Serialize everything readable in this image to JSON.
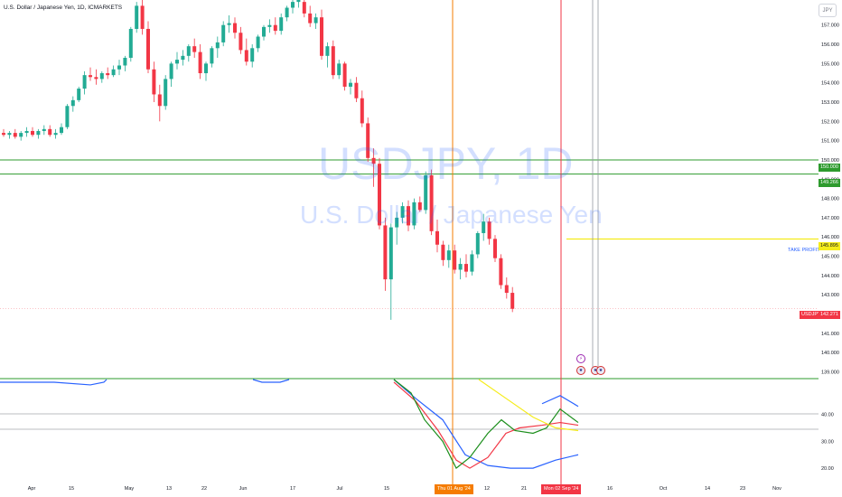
{
  "header": {
    "title": "U.S. Dollar / Japanese Yen, 1D, ICMARKETS",
    "currency": "JPY"
  },
  "watermark": {
    "symbol": "USDJPY, 1D",
    "description": "U.S. Dollar / Japanese Yen"
  },
  "annotations": {
    "take_profit": "TAKE PROFIT",
    "date_1": "Thu 01 Aug '24",
    "date_2": "Mon 02 Sep '24"
  },
  "price_tags": {
    "level_1": "150.000",
    "level_2": "149.266",
    "take_profit": "145.895",
    "symbol": "USDJPY",
    "last": "142.271"
  },
  "events": [
    "earnings-bolt-icon",
    "us-flag-icon",
    "us-flag-icon",
    "us-flag-icon"
  ],
  "colors": {
    "up": "#22ab94",
    "down": "#f23645",
    "level": "#2e9b2e",
    "take_profit": "#f5ec1a",
    "vline_1": "#f57c00",
    "vline_2": "#f23645",
    "osc_blue": "#2962ff",
    "osc_green": "#1b8e1b",
    "osc_red": "#f23645",
    "osc_yellow": "#f5ec1a"
  },
  "chart_data": [
    {
      "type": "candlestick",
      "symbol": "USDJPY",
      "timeframe": "1D",
      "y_axis_ticks": [
        "157.000",
        "156.000",
        "155.000",
        "154.000",
        "153.000",
        "152.000",
        "151.000",
        "150.000",
        "149.000",
        "148.000",
        "147.000",
        "146.000",
        "145.000",
        "144.000",
        "143.000",
        "142.000",
        "141.000",
        "140.000",
        "139.000"
      ],
      "x_axis_ticks": [
        "Apr",
        "15",
        "May",
        "13",
        "22",
        "Jun",
        "17",
        "Jul",
        "15",
        "Aug",
        "12",
        "21",
        "Sep",
        "16",
        "Oct",
        "14",
        "23",
        "Nov"
      ],
      "ylim": [
        138.6,
        158.3
      ],
      "horizontal_levels": [
        150.0,
        149.266
      ],
      "take_profit": 145.895,
      "last_price": 142.271,
      "markers": [
        "Thu 01 Aug '24",
        "Mon 02 Sep '24"
      ],
      "candles": [
        [
          151.4,
          151.6,
          151.2,
          151.3
        ],
        [
          151.3,
          151.5,
          151.1,
          151.4
        ],
        [
          151.4,
          151.6,
          151.1,
          151.2
        ],
        [
          151.2,
          151.5,
          151.0,
          151.4
        ],
        [
          151.4,
          151.7,
          151.2,
          151.5
        ],
        [
          151.5,
          151.7,
          151.2,
          151.3
        ],
        [
          151.3,
          151.6,
          151.1,
          151.5
        ],
        [
          151.5,
          151.8,
          151.3,
          151.6
        ],
        [
          151.6,
          151.8,
          151.2,
          151.3
        ],
        [
          151.3,
          151.6,
          151.1,
          151.4
        ],
        [
          151.4,
          151.9,
          151.3,
          151.7
        ],
        [
          151.7,
          152.9,
          151.6,
          152.8
        ],
        [
          152.8,
          153.3,
          152.5,
          153.1
        ],
        [
          153.1,
          153.8,
          153.0,
          153.7
        ],
        [
          153.7,
          154.6,
          153.4,
          154.4
        ],
        [
          154.4,
          154.8,
          154.1,
          154.3
        ],
        [
          154.3,
          154.7,
          153.9,
          154.2
        ],
        [
          154.2,
          154.6,
          154.0,
          154.5
        ],
        [
          154.5,
          154.8,
          154.2,
          154.4
        ],
        [
          154.4,
          154.9,
          154.3,
          154.7
        ],
        [
          154.7,
          155.2,
          154.4,
          154.9
        ],
        [
          154.9,
          155.4,
          154.6,
          155.3
        ],
        [
          155.3,
          156.9,
          155.1,
          156.8
        ],
        [
          156.8,
          158.2,
          156.6,
          158.0
        ],
        [
          158.0,
          158.4,
          156.5,
          156.8
        ],
        [
          156.8,
          157.2,
          154.5,
          154.7
        ],
        [
          154.7,
          155.1,
          153.0,
          153.4
        ],
        [
          153.4,
          153.9,
          152.0,
          152.8
        ],
        [
          152.8,
          154.4,
          152.6,
          154.2
        ],
        [
          154.2,
          155.1,
          153.8,
          155.0
        ],
        [
          155.0,
          155.6,
          154.7,
          155.2
        ],
        [
          155.2,
          155.7,
          154.9,
          155.4
        ],
        [
          155.4,
          156.0,
          155.1,
          155.9
        ],
        [
          155.9,
          156.3,
          155.3,
          155.6
        ],
        [
          155.6,
          156.0,
          154.2,
          154.5
        ],
        [
          154.5,
          155.1,
          154.1,
          155.0
        ],
        [
          155.0,
          155.9,
          154.8,
          155.8
        ],
        [
          155.8,
          156.4,
          155.3,
          156.1
        ],
        [
          156.1,
          157.2,
          155.9,
          157.0
        ],
        [
          157.0,
          157.5,
          156.6,
          157.1
        ],
        [
          157.1,
          157.4,
          156.3,
          156.6
        ],
        [
          156.6,
          156.9,
          155.5,
          155.7
        ],
        [
          155.7,
          156.3,
          154.9,
          155.1
        ],
        [
          155.1,
          156.0,
          154.8,
          155.8
        ],
        [
          155.8,
          156.5,
          155.6,
          156.4
        ],
        [
          156.4,
          157.0,
          156.2,
          156.9
        ],
        [
          156.9,
          157.3,
          156.6,
          157.0
        ],
        [
          157.0,
          157.4,
          156.5,
          156.7
        ],
        [
          156.7,
          157.6,
          156.5,
          157.4
        ],
        [
          157.4,
          158.0,
          157.2,
          157.9
        ],
        [
          157.9,
          158.4,
          157.6,
          158.2
        ],
        [
          158.2,
          158.6,
          157.9,
          158.3
        ],
        [
          158.2,
          158.4,
          157.4,
          157.6
        ],
        [
          157.6,
          158.0,
          156.9,
          157.1
        ],
        [
          157.1,
          157.6,
          156.8,
          157.4
        ],
        [
          157.4,
          157.8,
          155.2,
          155.4
        ],
        [
          155.4,
          156.1,
          154.8,
          155.9
        ],
        [
          155.9,
          156.2,
          154.2,
          154.4
        ],
        [
          154.4,
          155.2,
          154.2,
          155.0
        ],
        [
          155.0,
          155.1,
          153.6,
          153.8
        ],
        [
          153.8,
          154.2,
          153.4,
          154.0
        ],
        [
          154.0,
          154.3,
          153.0,
          153.2
        ],
        [
          153.2,
          153.6,
          151.7,
          151.9
        ],
        [
          151.9,
          152.2,
          149.9,
          150.1
        ],
        [
          150.1,
          150.6,
          148.6,
          149.8
        ],
        [
          149.8,
          150.1,
          146.4,
          146.6
        ],
        [
          146.6,
          147.0,
          143.2,
          143.8
        ],
        [
          143.8,
          146.7,
          141.7,
          146.5
        ],
        [
          146.5,
          147.3,
          145.6,
          147.0
        ],
        [
          147.0,
          147.8,
          146.7,
          147.6
        ],
        [
          147.6,
          147.9,
          146.3,
          146.6
        ],
        [
          146.6,
          148.0,
          146.4,
          147.8
        ],
        [
          147.8,
          148.1,
          147.3,
          147.4
        ],
        [
          147.4,
          149.4,
          147.2,
          149.2
        ],
        [
          149.2,
          149.5,
          146.1,
          146.3
        ],
        [
          146.3,
          146.9,
          145.2,
          145.6
        ],
        [
          145.6,
          145.8,
          144.5,
          144.8
        ],
        [
          144.8,
          145.6,
          144.4,
          145.3
        ],
        [
          145.3,
          145.6,
          144.1,
          144.3
        ],
        [
          144.3,
          144.9,
          143.8,
          144.6
        ],
        [
          144.6,
          145.1,
          143.9,
          144.2
        ],
        [
          144.2,
          145.3,
          144.0,
          145.1
        ],
        [
          145.1,
          146.3,
          144.9,
          146.2
        ],
        [
          146.2,
          147.2,
          145.8,
          146.8
        ],
        [
          146.8,
          147.0,
          145.6,
          145.9
        ],
        [
          145.9,
          146.1,
          144.7,
          144.9
        ],
        [
          144.9,
          145.1,
          143.3,
          143.5
        ],
        [
          143.5,
          143.9,
          142.8,
          143.1
        ],
        [
          143.1,
          143.4,
          142.1,
          142.271
        ]
      ]
    },
    {
      "type": "line",
      "name": "oscillator",
      "y_axis_ticks": [
        "40.00",
        "30.00",
        "20.00"
      ],
      "ylim": [
        16,
        53
      ]
    }
  ]
}
